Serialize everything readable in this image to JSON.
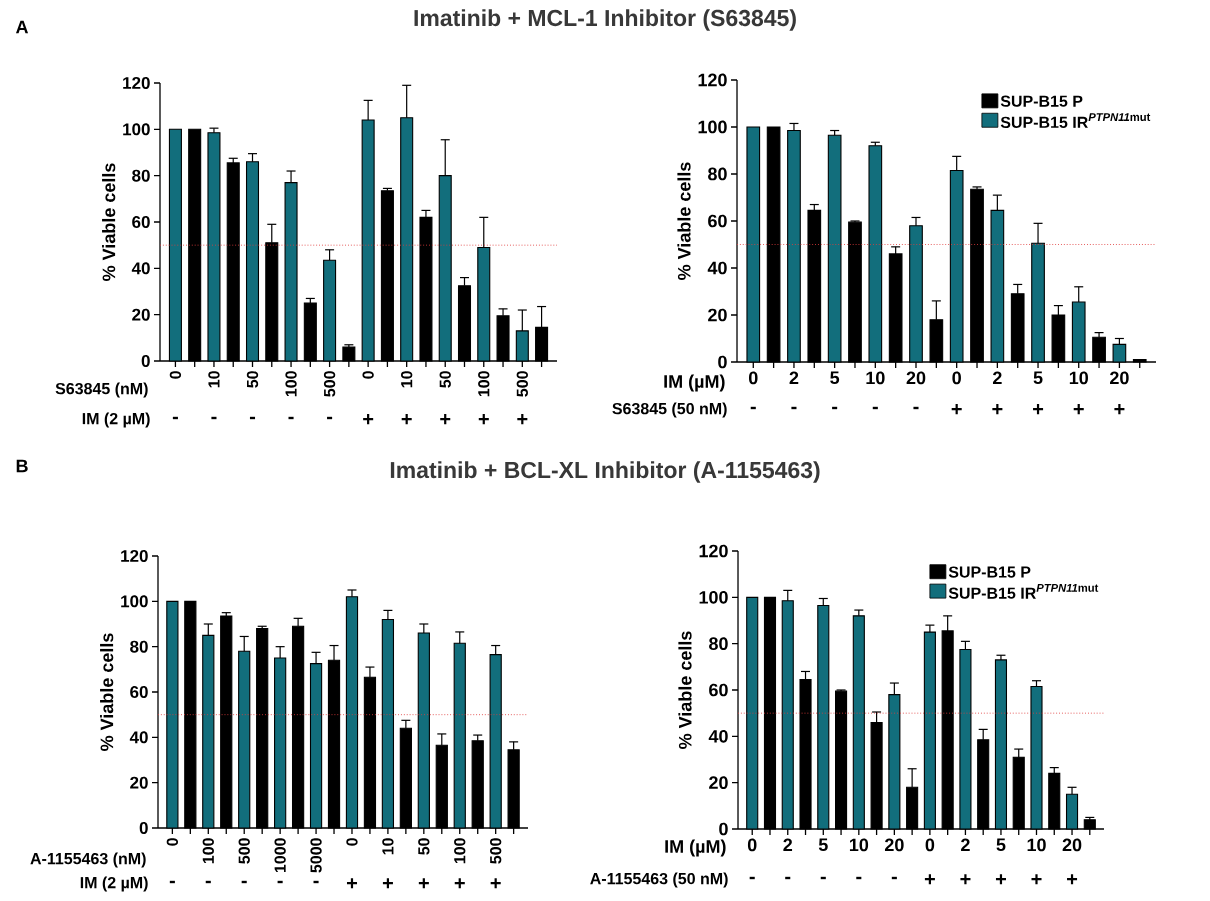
{
  "chart_data": [
    {
      "type": "bar",
      "title": "Imatinib + MCL-1 Inhibitor (S63845)",
      "ylabel": "% Viable cells",
      "xlabel": "S63845 (nM)",
      "categories": [
        "0",
        null,
        "10",
        null,
        "50",
        null,
        "100",
        null,
        "500",
        null,
        "0",
        null,
        "10",
        null,
        "50",
        null,
        "100",
        null,
        "500",
        null
      ],
      "ylim": [
        0,
        120
      ],
      "yticks": [
        0,
        20,
        40,
        60,
        80,
        100,
        120
      ],
      "legend": false,
      "ref_lines": [
        {
          "axis": "y",
          "value": 50,
          "color": "#e03c3c",
          "line_style": "dotted"
        }
      ],
      "annotations": [
        "A",
        "IM (2 µM)",
        "-",
        "-",
        "-",
        "-",
        "-",
        "+",
        "+",
        "+",
        "+",
        "+"
      ],
      "series": [
        {
          "color": "#000000",
          "values": [
            null,
            100,
            null,
            85.5,
            null,
            51,
            null,
            25,
            null,
            6,
            null,
            73.5,
            null,
            62,
            null,
            32.5,
            null,
            19.5,
            null,
            14.5
          ],
          "errors": [
            null,
            null,
            null,
            [
              85.5,
              87.5
            ],
            null,
            [
              51,
              59
            ],
            null,
            [
              25,
              27
            ],
            null,
            [
              6,
              7
            ],
            null,
            [
              73.5,
              74.5
            ],
            null,
            [
              62,
              65
            ],
            null,
            [
              32.5,
              36
            ],
            null,
            [
              19.5,
              22.5
            ],
            null,
            [
              14.5,
              23.5
            ]
          ]
        },
        {
          "color": "#126e7c",
          "values": [
            100,
            null,
            98.5,
            null,
            86,
            null,
            77,
            null,
            43.5,
            null,
            104,
            null,
            105,
            null,
            80,
            null,
            49,
            null,
            13,
            null
          ],
          "errors": [
            null,
            null,
            [
              98.5,
              100.5
            ],
            null,
            [
              86,
              89.5
            ],
            null,
            [
              77,
              82
            ],
            null,
            [
              43.5,
              48
            ],
            null,
            [
              104,
              112.5
            ],
            null,
            [
              105,
              119
            ],
            null,
            [
              80,
              95.5
            ],
            null,
            [
              49,
              62
            ],
            null,
            [
              13,
              22
            ],
            null
          ]
        }
      ]
    },
    {
      "type": "bar",
      "ylabel": "% Viable cells",
      "xlabel": "IM (µM)",
      "categories": [
        "0",
        null,
        "2",
        null,
        "5",
        null,
        "10",
        null,
        "20",
        null,
        "0",
        null,
        "2",
        null,
        "5",
        null,
        "10",
        null,
        "20",
        null
      ],
      "ylim": [
        0,
        120
      ],
      "yticks": [
        0,
        20,
        40,
        60,
        80,
        100,
        120
      ],
      "legend": "top right",
      "ref_lines": [
        {
          "axis": "y",
          "value": 50,
          "color": "#e03c3c",
          "line_style": "dotted"
        }
      ],
      "annotations": [
        "S63845 (50 nM)",
        "-",
        "-",
        "-",
        "-",
        "-",
        "+",
        "+",
        "+",
        "+",
        "+"
      ],
      "series": [
        {
          "name": "SUP-B15 P",
          "color": "#000000",
          "values": [
            null,
            100,
            null,
            64.5,
            null,
            59.5,
            null,
            46,
            null,
            18,
            null,
            73.5,
            null,
            29,
            null,
            20,
            null,
            10.5,
            null,
            1
          ],
          "errors": [
            null,
            null,
            null,
            [
              64.5,
              67
            ],
            null,
            [
              59.5,
              60
            ],
            null,
            [
              46,
              49
            ],
            null,
            [
              18,
              26
            ],
            null,
            [
              73.5,
              74.5
            ],
            null,
            [
              29,
              33
            ],
            null,
            [
              20,
              24
            ],
            null,
            [
              10.5,
              12.5
            ],
            null,
            null
          ]
        },
        {
          "name": "\\textbf{SUP-B15 IR}^{\\textbf{\\textit{PTPN11}mut}}",
          "color": "#126e7c",
          "values": [
            100,
            null,
            98.5,
            null,
            96.5,
            null,
            92,
            null,
            58,
            null,
            81.5,
            null,
            64.5,
            null,
            50.5,
            null,
            25.5,
            null,
            7.5,
            null
          ],
          "errors": [
            null,
            null,
            [
              98.5,
              101.5
            ],
            null,
            [
              96.5,
              98.5
            ],
            null,
            [
              92,
              93.5
            ],
            null,
            [
              58,
              61.5
            ],
            null,
            [
              81.5,
              87.5
            ],
            null,
            [
              64.5,
              71
            ],
            null,
            [
              50.5,
              59
            ],
            null,
            [
              25.5,
              32
            ],
            null,
            [
              7.5,
              10
            ],
            null
          ]
        }
      ]
    },
    {
      "type": "bar",
      "title": "Imatinib + BCL-XL Inhibitor (A-1155463)",
      "ylabel": "% Viable cells",
      "xlabel": "A-1155463 (nM)",
      "categories": [
        "0",
        null,
        "100",
        null,
        "500",
        null,
        "1000",
        null,
        "5000",
        null,
        "0",
        null,
        "10",
        null,
        "50",
        null,
        "100",
        null,
        "500",
        null
      ],
      "ylim": [
        0,
        120
      ],
      "yticks": [
        0,
        20,
        40,
        60,
        80,
        100,
        120
      ],
      "legend": false,
      "ref_lines": [
        {
          "axis": "y",
          "value": 50,
          "color": "#e03c3c",
          "line_style": "dotted"
        }
      ],
      "annotations": [
        "B",
        "IM (2 µM)",
        "-",
        "-",
        "-",
        "-",
        "-",
        "+",
        "+",
        "+",
        "+",
        "+"
      ],
      "series": [
        {
          "color": "#000000",
          "values": [
            null,
            100,
            null,
            93.5,
            null,
            88,
            null,
            89,
            null,
            74,
            null,
            66.5,
            null,
            44,
            null,
            36.5,
            null,
            38.5,
            null,
            34.5
          ],
          "errors": [
            null,
            null,
            null,
            [
              93.5,
              95
            ],
            null,
            [
              88,
              89
            ],
            null,
            [
              89,
              92.5
            ],
            null,
            [
              74,
              80.5
            ],
            null,
            [
              66.5,
              71
            ],
            null,
            [
              44,
              47.5
            ],
            null,
            [
              36.5,
              41.5
            ],
            null,
            [
              38.5,
              41
            ],
            null,
            [
              34.5,
              38
            ]
          ]
        },
        {
          "color": "#126e7c",
          "values": [
            100,
            null,
            85,
            null,
            78,
            null,
            75,
            null,
            72.5,
            null,
            102,
            null,
            92,
            null,
            86,
            null,
            81.5,
            null,
            76.5,
            null
          ],
          "errors": [
            null,
            null,
            [
              85,
              90
            ],
            null,
            [
              78,
              84.5
            ],
            null,
            [
              75,
              80
            ],
            null,
            [
              72.5,
              77.5
            ],
            null,
            [
              102,
              105
            ],
            null,
            [
              92,
              96
            ],
            null,
            [
              86,
              90
            ],
            null,
            [
              81.5,
              86.5
            ],
            null,
            [
              76.5,
              80.5
            ],
            null
          ]
        }
      ]
    },
    {
      "type": "bar",
      "ylabel": "% Viable cells",
      "xlabel": "IM (µM)",
      "categories": [
        "0",
        null,
        "2",
        null,
        "5",
        null,
        "10",
        null,
        "20",
        null,
        "0",
        null,
        "2",
        null,
        "5",
        null,
        "10",
        null,
        "20",
        null
      ],
      "ylim": [
        0,
        120
      ],
      "yticks": [
        0,
        20,
        40,
        60,
        80,
        100,
        120
      ],
      "legend": "top right",
      "ref_lines": [
        {
          "axis": "y",
          "value": 50,
          "color": "#e03c3c",
          "line_style": "dotted"
        }
      ],
      "annotations": [
        "A-1155463 (50 nM)",
        "-",
        "-",
        "-",
        "-",
        "-",
        "+",
        "+",
        "+",
        "+",
        "+"
      ],
      "series": [
        {
          "name": "SUP-B15 P",
          "color": "#000000",
          "values": [
            null,
            100,
            null,
            64.5,
            null,
            59.5,
            null,
            46,
            null,
            18,
            null,
            85.5,
            null,
            38.5,
            null,
            31,
            null,
            24,
            null,
            4
          ],
          "errors": [
            null,
            null,
            null,
            [
              64.5,
              68
            ],
            null,
            [
              59.5,
              60
            ],
            null,
            [
              46,
              50.5
            ],
            null,
            [
              18,
              26
            ],
            null,
            [
              85.5,
              92
            ],
            null,
            [
              38.5,
              43
            ],
            null,
            [
              31,
              34.5
            ],
            null,
            [
              24,
              26.5
            ],
            null,
            [
              4,
              5
            ]
          ]
        },
        {
          "name": "\\textbf{SUP-B15 IR}^{\\textbf{\\textit{PTPN11}mut}}",
          "color": "#126e7c",
          "values": [
            100,
            null,
            98.5,
            null,
            96.5,
            null,
            92,
            null,
            58,
            null,
            85,
            null,
            77.5,
            null,
            73,
            null,
            61.5,
            null,
            15,
            null
          ],
          "errors": [
            null,
            null,
            [
              98.5,
              103
            ],
            null,
            [
              96.5,
              99.5
            ],
            null,
            [
              92,
              94.5
            ],
            null,
            [
              58,
              63
            ],
            null,
            [
              85,
              88
            ],
            null,
            [
              77.5,
              81
            ],
            null,
            [
              73,
              75
            ],
            null,
            [
              61.5,
              64
            ],
            null,
            [
              15,
              18
            ],
            null
          ]
        }
      ]
    }
  ]
}
